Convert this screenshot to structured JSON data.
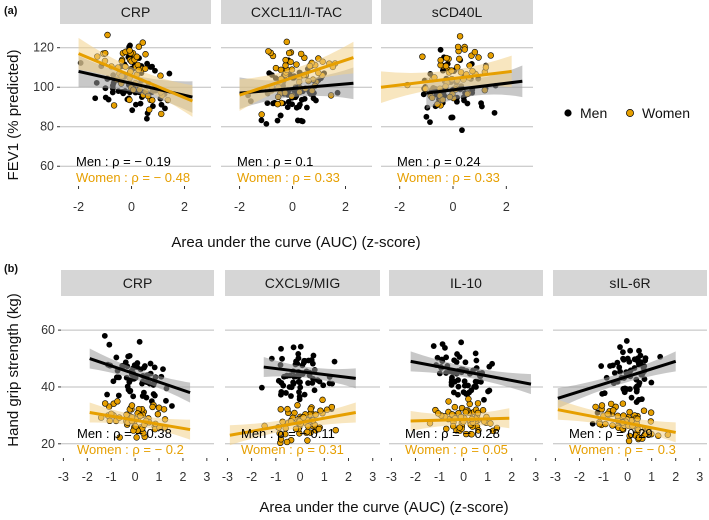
{
  "colors": {
    "men": "#000000",
    "women": "#E69F00",
    "men_band": "#9a9a9a",
    "women_band": "#f3d28a",
    "strip": "#d6d6d6",
    "grid": "#bdbdbd"
  },
  "legend": {
    "men": "Men",
    "women": "Women"
  },
  "rows": [
    {
      "tag": "(a)",
      "ylabel": "FEV1 (% predicted)",
      "xlabel": "Area under the curve (AUC) (z-score)",
      "ylim": [
        50,
        132
      ],
      "yticks": [
        60,
        80,
        100,
        120
      ],
      "xlim": [
        -2.7,
        3.0
      ],
      "xticks": [
        -2,
        0,
        2
      ]
    },
    {
      "tag": "(b)",
      "ylabel": "Hand grip strength (kg)",
      "xlabel": "Area under the curve (AUC) (z-score)",
      "ylim": [
        15,
        72
      ],
      "yticks": [
        20,
        40,
        60
      ],
      "xlim": [
        -3.1,
        3.3
      ],
      "xticks": [
        -3,
        -2,
        -1,
        0,
        1,
        2,
        3
      ]
    }
  ],
  "chart_data": [
    {
      "type": "scatter",
      "row": 0,
      "title": "CRP",
      "men_rho_text": "Men :  ρ = − 0.19",
      "women_rho_text": "Women :  ρ = − 0.48",
      "men_fit": [
        [
          -2,
          108
        ],
        [
          2.3,
          95
        ]
      ],
      "women_fit": [
        [
          -2,
          117
        ],
        [
          2.3,
          93
        ]
      ],
      "seed": 11,
      "men_n": 65,
      "women_n": 55,
      "men_center": 101,
      "women_center": 104,
      "men_sd": 14,
      "women_sd": 14
    },
    {
      "type": "scatter",
      "row": 0,
      "title": "CXCL11/I-TAC",
      "men_rho_text": "Men :  ρ = 0.1",
      "women_rho_text": "Women :  ρ = 0.33",
      "men_fit": [
        [
          -2,
          97
        ],
        [
          2.3,
          102
        ]
      ],
      "women_fit": [
        [
          -2,
          96
        ],
        [
          2.3,
          115
        ]
      ],
      "seed": 23,
      "men_n": 65,
      "women_n": 55,
      "men_center": 100,
      "women_center": 105,
      "men_sd": 14,
      "women_sd": 14
    },
    {
      "type": "scatter",
      "row": 0,
      "title": "sCD40L",
      "men_rho_text": "Men :  ρ = 0.24",
      "women_rho_text": "Women :  ρ = 0.33",
      "men_fit": [
        [
          -1,
          97
        ],
        [
          2.6,
          103
        ]
      ],
      "women_fit": [
        [
          -2.7,
          100
        ],
        [
          2.2,
          108
        ]
      ],
      "seed": 37,
      "men_n": 65,
      "women_n": 55,
      "men_center": 101,
      "women_center": 104,
      "men_sd": 14,
      "women_sd": 13
    },
    {
      "type": "scatter",
      "row": 1,
      "title": "CRP",
      "men_rho_text": "Men :  ρ = − 0.38",
      "women_rho_text": "Women :  ρ = − 0.2",
      "men_fit": [
        [
          -1.9,
          50
        ],
        [
          2.3,
          38
        ]
      ],
      "women_fit": [
        [
          -1.9,
          31
        ],
        [
          2.3,
          25
        ]
      ],
      "seed": 51,
      "men_n": 65,
      "women_n": 60,
      "men_center": 44,
      "women_center": 28,
      "men_sd": 8,
      "women_sd": 5
    },
    {
      "type": "scatter",
      "row": 1,
      "title": "CXCL9/MIG",
      "men_rho_text": "Men :  ρ = − 0.11",
      "women_rho_text": "Women :  ρ = 0.31",
      "men_fit": [
        [
          -1.5,
          47
        ],
        [
          2.3,
          43
        ]
      ],
      "women_fit": [
        [
          -2.9,
          23
        ],
        [
          2.3,
          31
        ]
      ],
      "seed": 67,
      "men_n": 65,
      "women_n": 60,
      "men_center": 44,
      "women_center": 28,
      "men_sd": 8,
      "women_sd": 5
    },
    {
      "type": "scatter",
      "row": 1,
      "title": "IL-10",
      "men_rho_text": "Men :  ρ = − 0.28",
      "women_rho_text": "Women :  ρ = 0.05",
      "men_fit": [
        [
          -2.2,
          49
        ],
        [
          2.8,
          41
        ]
      ],
      "women_fit": [
        [
          -2.2,
          28
        ],
        [
          1.9,
          29
        ]
      ],
      "seed": 79,
      "men_n": 65,
      "women_n": 60,
      "men_center": 44,
      "women_center": 28,
      "men_sd": 8,
      "women_sd": 5
    },
    {
      "type": "scatter",
      "row": 1,
      "title": "sIL-6R",
      "men_rho_text": "Men :  ρ = 0.29",
      "women_rho_text": "Women :  ρ = − 0.3",
      "men_fit": [
        [
          -2.9,
          36
        ],
        [
          2.0,
          49
        ]
      ],
      "women_fit": [
        [
          -2.9,
          32
        ],
        [
          2.0,
          24
        ]
      ],
      "seed": 97,
      "men_n": 65,
      "women_n": 60,
      "men_center": 44,
      "women_center": 28,
      "men_sd": 8,
      "women_sd": 5
    }
  ]
}
